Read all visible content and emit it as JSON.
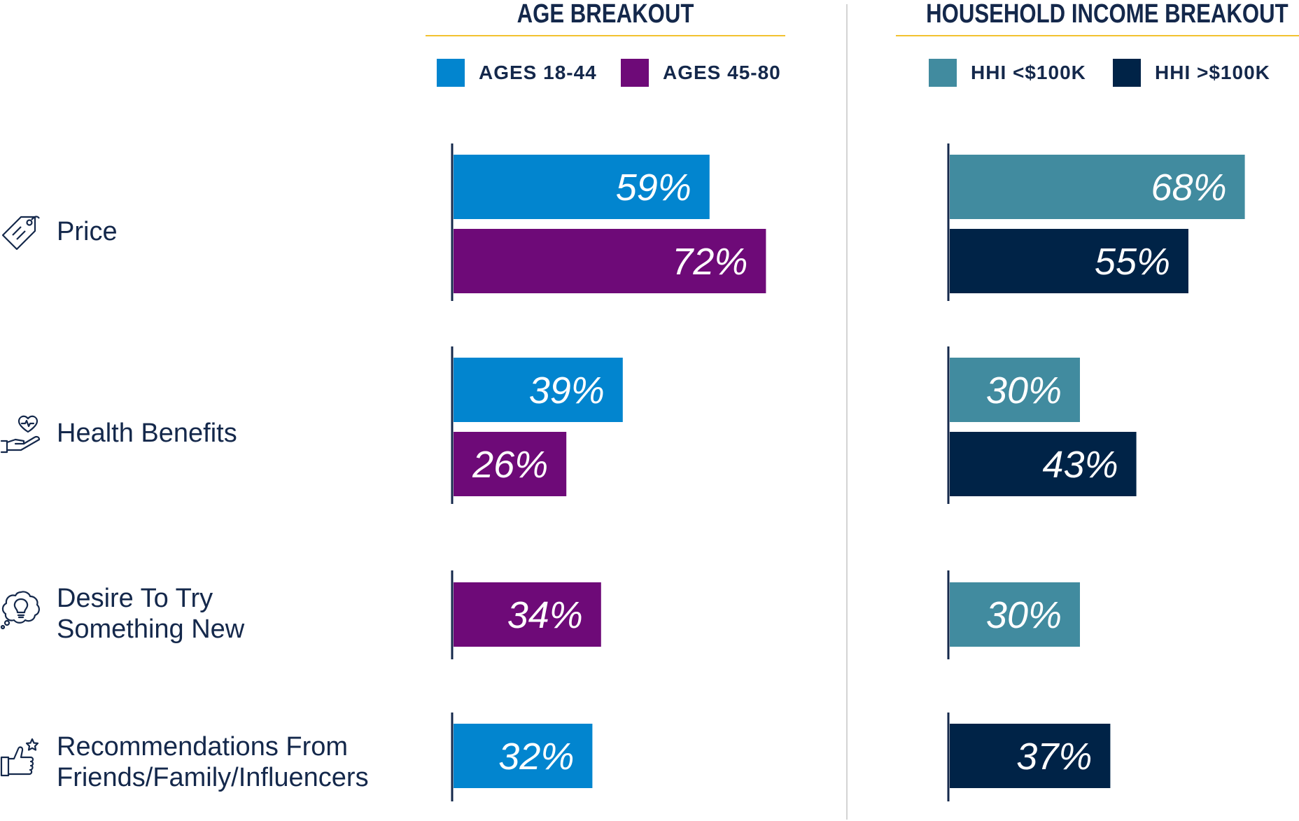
{
  "chart_data": [
    {
      "type": "bar",
      "orientation": "horizontal",
      "title": "AGE BREAKOUT",
      "categories": [
        "Price",
        "Health Benefits",
        "Desire To Try Something New",
        "Recommendations From Friends/Family/Influencers"
      ],
      "series": [
        {
          "name": "AGES 18-44",
          "color": "#0285cf",
          "values": [
            59,
            39,
            null,
            32
          ],
          "labels": [
            "59%",
            "39%",
            null,
            "32%"
          ]
        },
        {
          "name": "AGES 45-80",
          "color": "#6e0a78",
          "values": [
            72,
            26,
            34,
            null
          ],
          "labels": [
            "72%",
            "26%",
            "34%",
            null
          ]
        }
      ],
      "xlim": [
        0,
        80
      ],
      "unit": "%",
      "legend": "top",
      "grid": false
    },
    {
      "type": "bar",
      "orientation": "horizontal",
      "title": "HOUSEHOLD INCOME BREAKOUT",
      "categories": [
        "Price",
        "Health Benefits",
        "Desire To Try Something New",
        "Recommendations From Friends/Family/Influencers"
      ],
      "series": [
        {
          "name": "HHI <$100K",
          "color": "#418b9f",
          "values": [
            68,
            30,
            30,
            null
          ],
          "labels": [
            "68%",
            "30%",
            "30%",
            null
          ]
        },
        {
          "name": "HHI >$100K",
          "color": "#002347",
          "values": [
            55,
            43,
            null,
            37
          ],
          "labels": [
            "55%",
            "43%",
            null,
            "37%"
          ]
        }
      ],
      "xlim": [
        0,
        80
      ],
      "unit": "%",
      "legend": "top",
      "grid": false
    }
  ],
  "rows": [
    {
      "lines": [
        "Price"
      ],
      "icon": "price-tag-icon"
    },
    {
      "lines": [
        "Health Benefits"
      ],
      "icon": "heart-hand-icon"
    },
    {
      "lines": [
        "Desire To Try",
        "Something New"
      ],
      "icon": "lightbulb-thought-icon"
    },
    {
      "lines": [
        "Recommendations From",
        "Friends/Family/Influencers"
      ],
      "icon": "thumbs-up-star-icon"
    }
  ],
  "colors": {
    "title_rule": "#f2c230",
    "text": "#14284b",
    "axis": "#14284b",
    "divider": "#d4d4d4"
  }
}
